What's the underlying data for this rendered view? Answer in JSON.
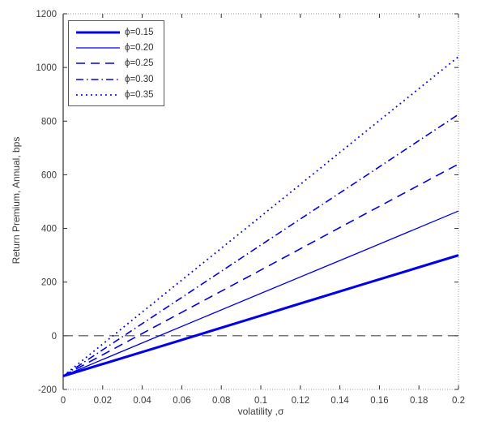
{
  "figure": {
    "colors": {
      "background": "#ffffff",
      "series_blue": "#0000EE",
      "axis_line": "#2e2e2e",
      "frame_dotted": "#9a9a9a",
      "tick_text": "#3c3c3c",
      "zero_line": "#4a4a4a",
      "legend_border": "#5a5a5a"
    }
  },
  "chart_data": {
    "type": "line",
    "title": "",
    "xlabel": "volatility ,σ",
    "ylabel": "Return Premium, Annual, bps",
    "xlim": [
      0,
      0.2
    ],
    "ylim": [
      -200,
      1200
    ],
    "grid": false,
    "legend_position": "top-left",
    "x_ticks": [
      0,
      0.02,
      0.04,
      0.06,
      0.08,
      0.1,
      0.12,
      0.14,
      0.16,
      0.18,
      0.2
    ],
    "x_tick_labels": [
      "0",
      "0.02",
      "0.04",
      "0.06",
      "0.08",
      "0.1",
      "0.12",
      "0.14",
      "0.16",
      "0.18",
      "0.2"
    ],
    "y_ticks": [
      -200,
      0,
      200,
      400,
      600,
      800,
      1000,
      1200
    ],
    "y_tick_labels": [
      "-200",
      "0",
      "200",
      "400",
      "600",
      "800",
      "1000",
      "1200"
    ],
    "x": [
      0,
      0.05,
      0.1,
      0.15,
      0.2
    ],
    "series": [
      {
        "name": "phi-0.15",
        "label": "ϕ=0.15",
        "style": "solid-thick",
        "values": [
          -150,
          -38,
          75,
          188,
          300
        ]
      },
      {
        "name": "phi-0.20",
        "label": "ϕ=0.20",
        "style": "solid",
        "values": [
          -150,
          4,
          158,
          311,
          465
        ]
      },
      {
        "name": "phi-0.25",
        "label": "ϕ=0.25",
        "style": "dashed",
        "values": [
          -150,
          48,
          245,
          443,
          640
        ]
      },
      {
        "name": "phi-0.30",
        "label": "ϕ=0.30",
        "style": "dash-dot",
        "values": [
          -150,
          94,
          338,
          581,
          825
        ]
      },
      {
        "name": "phi-0.35",
        "label": "ϕ=0.35",
        "style": "dotted",
        "values": [
          -150,
          148,
          445,
          743,
          1040
        ]
      }
    ],
    "reference_line": {
      "y": 0,
      "style": "dashed",
      "color": "#4a4a4a"
    }
  }
}
